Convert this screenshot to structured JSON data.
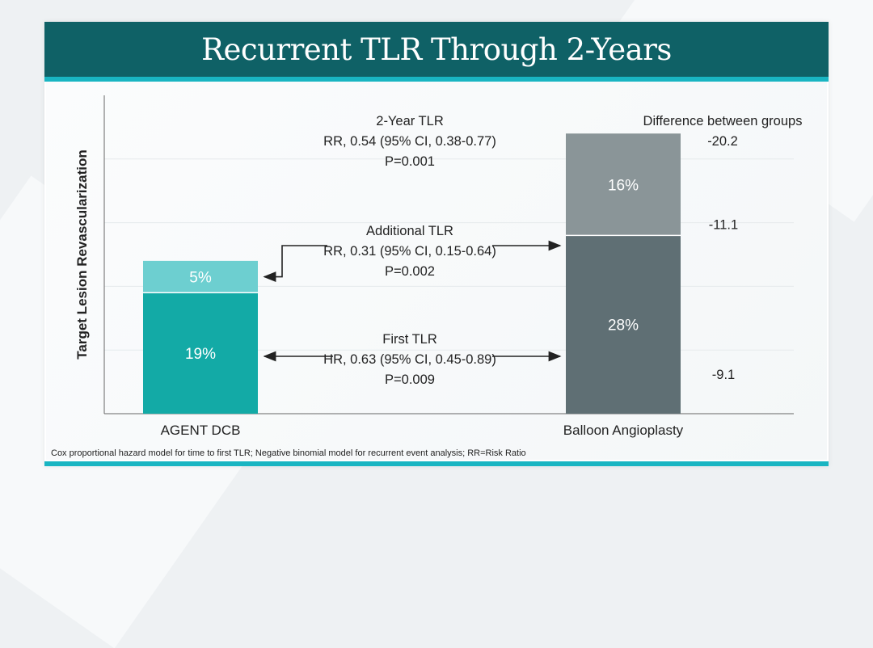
{
  "title": "Recurrent TLR Through 2-Years",
  "footnote": "Cox proportional hazard model for time to first TLR; Negative binomial model for recurrent event analysis; RR=Risk Ratio",
  "colors": {
    "title_bg": "#0f6166",
    "accent": "#19b5c2",
    "agent_first": "#13aaa6",
    "agent_additional": "#6dcfd0",
    "balloon_first": "#5f6f74",
    "balloon_additional": "#8a9598"
  },
  "chart_data": {
    "type": "bar",
    "stacked": true,
    "categories": [
      "AGENT DCB",
      "Balloon Angioplasty"
    ],
    "ylabel": "Target Lesion Revascularization",
    "ylim": [
      0,
      50
    ],
    "grid": true,
    "series": [
      {
        "key": "first",
        "values": [
          19,
          28
        ],
        "labels": [
          "19%",
          "28%"
        ]
      },
      {
        "key": "additional",
        "values": [
          5,
          16
        ],
        "labels": [
          "5%",
          "16%"
        ]
      }
    ],
    "annotations": {
      "two_year": [
        "2-Year TLR",
        "RR, 0.54 (95% CI, 0.38-0.77)",
        "P=0.001"
      ],
      "additional": [
        "Additional TLR",
        "RR, 0.31 (95% CI, 0.15-0.64)",
        "P=0.002"
      ],
      "first": [
        "First TLR",
        "HR, 0.63 (95% CI, 0.45-0.89)",
        "P=0.009"
      ]
    },
    "difference": {
      "header": "Difference between groups",
      "total": "-20.2",
      "additional": "-11.1",
      "first": "-9.1"
    }
  }
}
